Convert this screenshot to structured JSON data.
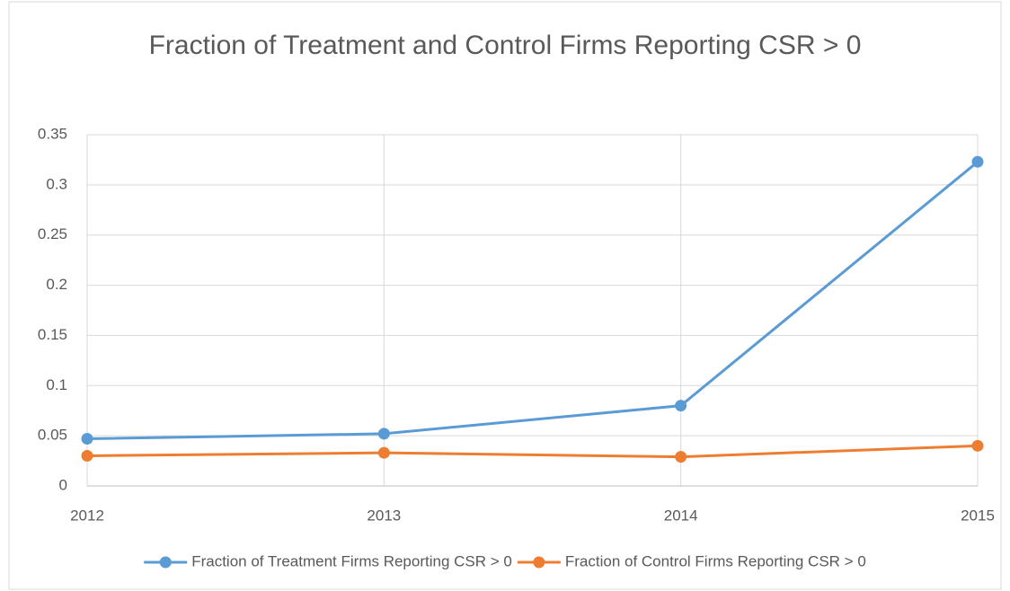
{
  "chart_data": {
    "type": "line",
    "title": "Fraction of Treatment and Control Firms Reporting CSR > 0",
    "categories": [
      "2012",
      "2013",
      "2014",
      "2015"
    ],
    "series": [
      {
        "name": "Fraction of Treatment Firms Reporting CSR > 0",
        "color": "#5b9bd5",
        "values": [
          0.047,
          0.052,
          0.08,
          0.323
        ]
      },
      {
        "name": "Fraction of Control Firms Reporting CSR > 0",
        "color": "#ed7d31",
        "values": [
          0.03,
          0.033,
          0.029,
          0.04
        ]
      }
    ],
    "ylim": [
      0,
      0.35
    ],
    "yticks": [
      0,
      0.05,
      0.1,
      0.15,
      0.2,
      0.25,
      0.3,
      0.35
    ],
    "grid": true,
    "legend": "bottom"
  }
}
